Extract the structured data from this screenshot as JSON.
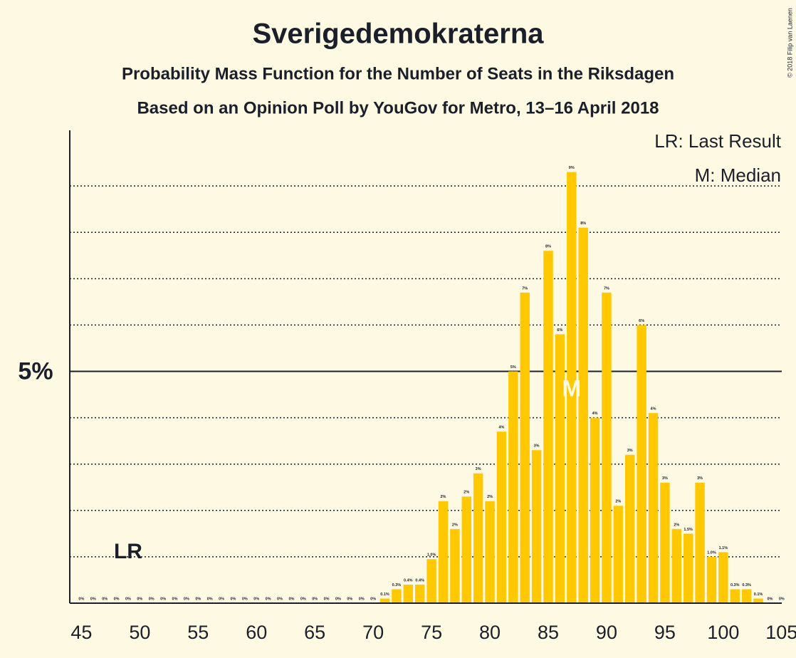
{
  "chart_data": {
    "type": "bar",
    "title": "Sverigedemokraterna",
    "subtitle": "Probability Mass Function for the Number of Seats in the Riksdagen",
    "subtitle2": "Based on an Opinion Poll by YouGov for Metro, 13–16 April 2018",
    "copyright": "© 2018 Filip van Laenen",
    "legend": [
      "LR: Last Result",
      "M: Median"
    ],
    "last_result": {
      "seat": 49,
      "label": "LR"
    },
    "median": {
      "seat": 87,
      "label": "M"
    },
    "x": [
      45,
      46,
      47,
      48,
      49,
      50,
      51,
      52,
      53,
      54,
      55,
      56,
      57,
      58,
      59,
      60,
      61,
      62,
      63,
      64,
      65,
      66,
      67,
      68,
      69,
      70,
      71,
      72,
      73,
      74,
      75,
      76,
      77,
      78,
      79,
      80,
      81,
      82,
      83,
      84,
      85,
      86,
      87,
      88,
      89,
      90,
      91,
      92,
      93,
      94,
      95,
      96,
      97,
      98,
      99,
      100,
      101,
      102,
      103,
      104,
      105
    ],
    "values": [
      0,
      0,
      0,
      0,
      0,
      0,
      0,
      0,
      0,
      0,
      0,
      0,
      0,
      0,
      0,
      0,
      0,
      0,
      0,
      0,
      0,
      0,
      0,
      0,
      0,
      0,
      0.1,
      0.3,
      0.4,
      0.4,
      0.95,
      2.2,
      1.6,
      2.3,
      2.8,
      2.2,
      3.7,
      5.0,
      6.7,
      3.3,
      7.6,
      5.8,
      9.3,
      8.1,
      4.0,
      6.7,
      2.1,
      3.2,
      6.0,
      4.1,
      2.6,
      1.6,
      1.5,
      2.6,
      1.0,
      1.1,
      0.3,
      0.3,
      0.1,
      0,
      0
    ],
    "value_labels": [
      "0%",
      "0%",
      "0%",
      "0%",
      "0%",
      "0%",
      "0%",
      "0%",
      "0%",
      "0%",
      "0%",
      "0%",
      "0%",
      "0%",
      "0%",
      "0%",
      "0%",
      "0%",
      "0%",
      "0%",
      "0%",
      "0%",
      "0%",
      "0%",
      "0%",
      "0%",
      "0.1%",
      "0.3%",
      "0.4%",
      "0.4%",
      "1.0%",
      "2%",
      "2%",
      "2%",
      "3%",
      "2%",
      "4%",
      "5%",
      "7%",
      "3%",
      "8%",
      "6%",
      "9%",
      "8%",
      "4%",
      "7%",
      "2%",
      "3%",
      "6%",
      "4%",
      "3%",
      "2%",
      "1.5%",
      "3%",
      "1.0%",
      "1.1%",
      "0.3%",
      "0.3%",
      "0.1%",
      "0%",
      "0%"
    ],
    "color": "#ffc800",
    "xlim": [
      44,
      105.5
    ],
    "xticks": [
      45,
      50,
      55,
      60,
      65,
      70,
      75,
      80,
      85,
      90,
      95,
      100,
      105
    ],
    "ylim": [
      0,
      10.2
    ],
    "yticks": [
      {
        "value": 5,
        "label": "5%"
      }
    ],
    "minor_gridlines": [
      1,
      2,
      3,
      4,
      6,
      7,
      8,
      9
    ]
  }
}
